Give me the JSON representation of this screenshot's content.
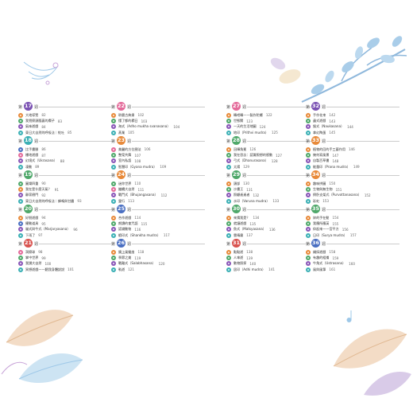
{
  "colors": {
    "orange": "#e88a3a",
    "blue": "#4a6fc2",
    "green": "#4fa86a",
    "purple": "#8a56b8",
    "red": "#d9534f",
    "pink": "#e46a9a",
    "teal": "#3bb0b5"
  },
  "sections": [
    {
      "num": "17",
      "color": "#7b52b3",
      "items": [
        {
          "t": "大地導覽",
          "p": "82",
          "ic": "#e88a3a"
        },
        {
          "t": "我覺察頭腦裏的欄子",
          "p": "83",
          "ic": "#4fa86a"
        },
        {
          "t": "氣味遊戲",
          "p": "84",
          "ic": "#8a56b8"
        },
        {
          "t": "東日大自然的呼吸法｜蛇吐",
          "p": "85",
          "ic": "#3bb0b5"
        }
      ]
    },
    {
      "num": "18",
      "color": "#3bb0b5",
      "items": [
        {
          "t": "比手畫腳",
          "p": "86",
          "ic": "#4a6fc2"
        },
        {
          "t": "樓地遊戲",
          "p": "87",
          "ic": "#e46a9a"
        },
        {
          "t": "幻境式（Ukrasana）",
          "p": "88",
          "ic": "#8a56b8"
        },
        {
          "t": "凍動",
          "p": "89",
          "ic": "#3bb0b5"
        }
      ]
    },
    {
      "num": "19",
      "color": "#4fa86a",
      "items": [
        {
          "t": "圖樂四重",
          "p": "90",
          "ic": "#4fa86a"
        },
        {
          "t": "我在是什麼天氣？",
          "p": "91",
          "ic": "#e88a3a"
        },
        {
          "t": "靜家樹門",
          "p": "92",
          "ic": "#8a56b8"
        },
        {
          "t": "東日大自然的呼吸法｜蜂鳴與甘露",
          "p": "93",
          "ic": "#3bb0b5"
        }
      ]
    },
    {
      "num": "20",
      "color": "#4fa86a",
      "items": [
        {
          "t": "好朋遊戲",
          "p": "94",
          "ic": "#e88a3a"
        },
        {
          "t": "擺動道具",
          "p": "95",
          "ic": "#4a6fc2"
        },
        {
          "t": "貓式與牛式（Marjaryasana）",
          "p": "96",
          "ic": "#8a56b8"
        },
        {
          "t": "下雨了",
          "p": "97",
          "ic": "#3bb0b5"
        }
      ]
    },
    {
      "num": "21",
      "color": "#d9534f",
      "items": [
        {
          "t": "洞察球",
          "p": "98",
          "ic": "#e46a9a"
        },
        {
          "t": "掌中世界",
          "p": "99",
          "ic": "#4fa86a"
        },
        {
          "t": "我讚大自然",
          "p": "100",
          "ic": "#8a56b8"
        },
        {
          "t": "冥想遊戲——聽我身體說說",
          "p": "101",
          "ic": "#3bb0b5"
        }
      ]
    },
    {
      "num": "22",
      "color": "#e46a9a",
      "items": [
        {
          "t": "聆聽古典樂",
          "p": "102",
          "ic": "#e88a3a"
        },
        {
          "t": "懂了都的欄日",
          "p": "103",
          "ic": "#4fa86a"
        },
        {
          "t": "海式（Adho mukha svanasana）",
          "p": "104",
          "ic": "#8a56b8"
        },
        {
          "t": "蒸業",
          "p": "105",
          "ic": "#3bb0b5"
        }
      ]
    },
    {
      "num": "23",
      "color": "#e88a3a",
      "items": [
        {
          "t": "美麗的方位圈法",
          "p": "106",
          "ic": "#e46a9a"
        },
        {
          "t": "整案共舞",
          "p": "107",
          "ic": "#4fa86a"
        },
        {
          "t": "室內私語",
          "p": "108",
          "ic": "#8a56b8"
        },
        {
          "t": "智慧印（Gyana mudra）",
          "p": "109",
          "ic": "#3bb0b5"
        }
      ]
    },
    {
      "num": "24",
      "color": "#e88a3a",
      "items": [
        {
          "t": "迷你世界",
          "p": "110",
          "ic": "#4fa86a"
        },
        {
          "t": "繼續大自然",
          "p": "111",
          "ic": "#e46a9a"
        },
        {
          "t": "戰鬥式（Bhujangasana）",
          "p": "112",
          "ic": "#8a56b8"
        },
        {
          "t": "靈行",
          "p": "113",
          "ic": "#3bb0b5"
        }
      ]
    },
    {
      "num": "25",
      "color": "#4a6fc2",
      "items": [
        {
          "t": "合作遊戲",
          "p": "114",
          "ic": "#e88a3a"
        },
        {
          "t": "朗讀的會咒語",
          "p": "115",
          "ic": "#4fa86a"
        },
        {
          "t": "認識動物",
          "p": "116",
          "ic": "#8a56b8"
        },
        {
          "t": "蝦印式（Shankha mudra）",
          "p": "117",
          "ic": "#3bb0b5"
        }
      ]
    },
    {
      "num": "26",
      "color": "#4a6fc2",
      "items": [
        {
          "t": "鏡上風聲度",
          "p": "118",
          "ic": "#e88a3a"
        },
        {
          "t": "季節之美",
          "p": "119",
          "ic": "#4fa86a"
        },
        {
          "t": "戰離式（Salabhasana）",
          "p": "120",
          "ic": "#8a56b8"
        },
        {
          "t": "軌遊",
          "p": "121",
          "ic": "#3bb0b5"
        }
      ]
    },
    {
      "num": "27",
      "color": "#e46a9a",
      "items": [
        {
          "t": "轉吧轉——製作陀螺",
          "p": "122",
          "ic": "#e88a3a"
        },
        {
          "t": "世態關",
          "p": "123",
          "ic": "#4fa86a"
        },
        {
          "t": "一天的生活地圖",
          "p": "124",
          "ic": "#8a56b8"
        },
        {
          "t": "地印（Prithvi mudra）",
          "p": "125",
          "ic": "#3bb0b5"
        }
      ]
    },
    {
      "num": "28",
      "color": "#4fa86a",
      "items": [
        {
          "t": "冠輝角冕",
          "p": "126",
          "ic": "#e88a3a"
        },
        {
          "t": "我在思念：認識照想的感動",
          "p": "127",
          "ic": "#4fa86a"
        },
        {
          "t": "弓式（Dhanurasana）",
          "p": "128",
          "ic": "#8a56b8"
        },
        {
          "t": "太陽",
          "p": "129",
          "ic": "#3bb0b5"
        }
      ]
    },
    {
      "num": "29",
      "color": "#4fa86a",
      "items": [
        {
          "t": "頭部",
          "p": "130",
          "ic": "#e88a3a"
        },
        {
          "t": "沙畫王",
          "p": "131",
          "ic": "#4fa86a"
        },
        {
          "t": "照顧遙遙者",
          "p": "132",
          "ic": "#8a56b8"
        },
        {
          "t": "水印（Varuna mudra）",
          "p": "133",
          "ic": "#3bb0b5"
        }
      ]
    },
    {
      "num": "30",
      "color": "#4fa86a",
      "items": [
        {
          "t": "來猜我是？",
          "p": "134",
          "ic": "#e88a3a"
        },
        {
          "t": "就讓遊戲",
          "p": "135",
          "ic": "#4fa86a"
        },
        {
          "t": "魚式（Matsyasana）",
          "p": "136",
          "ic": "#8a56b8"
        },
        {
          "t": "雲晴霧",
          "p": "137",
          "ic": "#3bb0b5"
        }
      ]
    },
    {
      "num": "31",
      "color": "#d9534f",
      "items": [
        {
          "t": "點點遊",
          "p": "138",
          "ic": "#e88a3a"
        },
        {
          "t": "人傘遊",
          "p": "139",
          "ic": "#4fa86a"
        },
        {
          "t": "動物照探",
          "p": "140",
          "ic": "#8a56b8"
        },
        {
          "t": "居印（Adhi mudra）",
          "p": "141",
          "ic": "#3bb0b5"
        }
      ]
    },
    {
      "num": "32",
      "color": "#7b52b3",
      "items": [
        {
          "t": "手作花束",
          "p": "142",
          "ic": "#e88a3a"
        },
        {
          "t": "蟲式遊戲",
          "p": "143",
          "ic": "#4fa86a"
        },
        {
          "t": "猴式（Naukasana）",
          "p": "144",
          "ic": "#8a56b8"
        },
        {
          "t": "拿幻陶蛋",
          "p": "145",
          "ic": "#3bb0b5"
        }
      ]
    },
    {
      "num": "33",
      "color": "#e88a3a",
      "items": [
        {
          "t": "植物的回的手工藝作用",
          "p": "146",
          "ic": "#e88a3a"
        },
        {
          "t": "幾何寫風景",
          "p": "147",
          "ic": "#4fa86a"
        },
        {
          "t": "自製百草書",
          "p": "148",
          "ic": "#8a56b8"
        },
        {
          "t": "能量印（Prana mudra）",
          "p": "149",
          "ic": "#3bb0b5"
        }
      ]
    },
    {
      "num": "34",
      "color": "#e88a3a",
      "items": [
        {
          "t": "趣味拼圖",
          "p": "150",
          "ic": "#e88a3a"
        },
        {
          "t": "生物與無生物",
          "p": "151",
          "ic": "#4fa86a"
        },
        {
          "t": "倒卧支架式（Purvottanasana）",
          "p": "152",
          "ic": "#8a56b8"
        },
        {
          "t": "彩虹",
          "p": "153",
          "ic": "#3bb0b5"
        }
      ]
    },
    {
      "num": "35",
      "color": "#4fa86a",
      "items": [
        {
          "t": "妳的手在動",
          "p": "154",
          "ic": "#e88a3a"
        },
        {
          "t": "我應所應英",
          "p": "155",
          "ic": "#4fa86a"
        },
        {
          "t": "仰起來——宮平方",
          "p": "156",
          "ic": "#8a56b8"
        },
        {
          "t": "日印（Surya mudra）",
          "p": "157",
          "ic": "#3bb0b5"
        }
      ]
    },
    {
      "num": "36",
      "color": "#4a6fc2",
      "items": [
        {
          "t": "繩採遊戲",
          "p": "158",
          "ic": "#e88a3a"
        },
        {
          "t": "有趣的組織",
          "p": "159",
          "ic": "#4fa86a"
        },
        {
          "t": "牛角式（Ustrasana）",
          "p": "160",
          "ic": "#8a56b8"
        },
        {
          "t": "風與風箏",
          "p": "161",
          "ic": "#3bb0b5"
        }
      ]
    }
  ],
  "labels": {
    "pre": "第",
    "suf": "週"
  }
}
